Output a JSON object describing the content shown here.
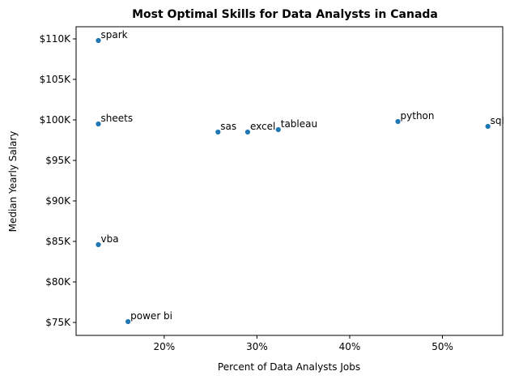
{
  "chart_data": {
    "type": "scatter",
    "title": "Most Optimal Skills for Data Analysts in Canada",
    "xlabel": "Percent of Data Analysts Jobs",
    "ylabel": "Median Yearly Salary",
    "xlim": [
      10.5,
      56.5
    ],
    "ylim": [
      73400,
      111500
    ],
    "x_ticks": [
      {
        "value": 20,
        "label": "20%"
      },
      {
        "value": 30,
        "label": "30%"
      },
      {
        "value": 40,
        "label": "40%"
      },
      {
        "value": 50,
        "label": "50%"
      }
    ],
    "y_ticks": [
      {
        "value": 75000,
        "label": "$75K"
      },
      {
        "value": 80000,
        "label": "$80K"
      },
      {
        "value": 85000,
        "label": "$85K"
      },
      {
        "value": 90000,
        "label": "$90K"
      },
      {
        "value": 95000,
        "label": "$95K"
      },
      {
        "value": 100000,
        "label": "$100K"
      },
      {
        "value": 105000,
        "label": "$105K"
      },
      {
        "value": 110000,
        "label": "$110K"
      }
    ],
    "grid": false,
    "point_color": "#1f77b4",
    "points": [
      {
        "label": "spark",
        "x": 12.9,
        "y": 109800
      },
      {
        "label": "sheets",
        "x": 12.9,
        "y": 99500
      },
      {
        "label": "vba",
        "x": 12.9,
        "y": 84600
      },
      {
        "label": "power bi",
        "x": 16.1,
        "y": 75100
      },
      {
        "label": "sas",
        "x": 25.8,
        "y": 98500
      },
      {
        "label": "excel",
        "x": 29.0,
        "y": 98500
      },
      {
        "label": "tableau",
        "x": 32.3,
        "y": 98800
      },
      {
        "label": "python",
        "x": 45.2,
        "y": 99800
      },
      {
        "label": "sql",
        "x": 54.9,
        "y": 99200
      }
    ]
  }
}
